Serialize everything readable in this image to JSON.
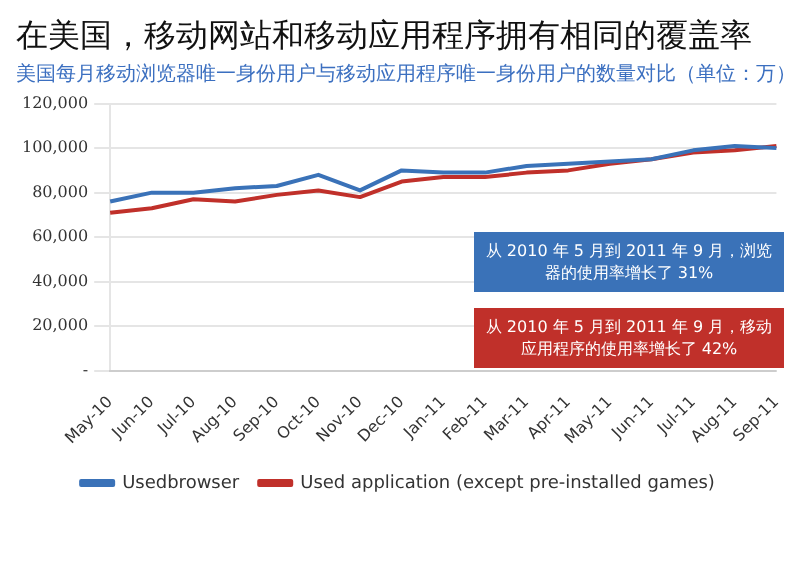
{
  "chart_data": {
    "type": "line",
    "title": "在美国，移动网站和移动应用程序拥有相同的覆盖率",
    "subtitle": "美国每月移动浏览器唯一身份用户与移动应用程序唯一身份用户的数量对比（单位：万）",
    "categories": [
      "May-10",
      "Jun-10",
      "Jul-10",
      "Aug-10",
      "Sep-10",
      "Oct-10",
      "Nov-10",
      "Dec-10",
      "Jan-11",
      "Feb-11",
      "Mar-11",
      "Apr-11",
      "May-11",
      "Jun-11",
      "Jul-11",
      "Aug-11",
      "Sep-11"
    ],
    "series": [
      {
        "name": "Usedbrowser",
        "color": "#3a72b8",
        "values": [
          76000,
          80000,
          80000,
          82000,
          83000,
          88000,
          81000,
          90000,
          89000,
          89000,
          92000,
          93000,
          94000,
          95000,
          99000,
          101000,
          100000
        ]
      },
      {
        "name": "Used application (except pre-installed games)",
        "color": "#c0302a",
        "values": [
          71000,
          73000,
          77000,
          76000,
          79000,
          81000,
          78000,
          85000,
          87000,
          87000,
          89000,
          90000,
          93000,
          95000,
          98000,
          99000,
          101000
        ]
      }
    ],
    "ylim": [
      0,
      120000
    ],
    "yticks": [
      {
        "value": 0,
        "label": "-"
      },
      {
        "value": 20000,
        "label": "20,000"
      },
      {
        "value": 40000,
        "label": "40,000"
      },
      {
        "value": 60000,
        "label": "60,000"
      },
      {
        "value": 80000,
        "label": "80,000"
      },
      {
        "value": 100000,
        "label": "100,000"
      },
      {
        "value": 120000,
        "label": "120,000"
      }
    ],
    "grid": "y",
    "legend": "bottom",
    "marker": "none",
    "line_style": "solid",
    "annotations": [
      "从 2010 年 5 月到 2011 年 9 月，浏览器的使用率增长了 31%",
      "从 2010 年 5 月到 2011 年 9 月，移动应用程序的使用率增长了 42%"
    ]
  }
}
